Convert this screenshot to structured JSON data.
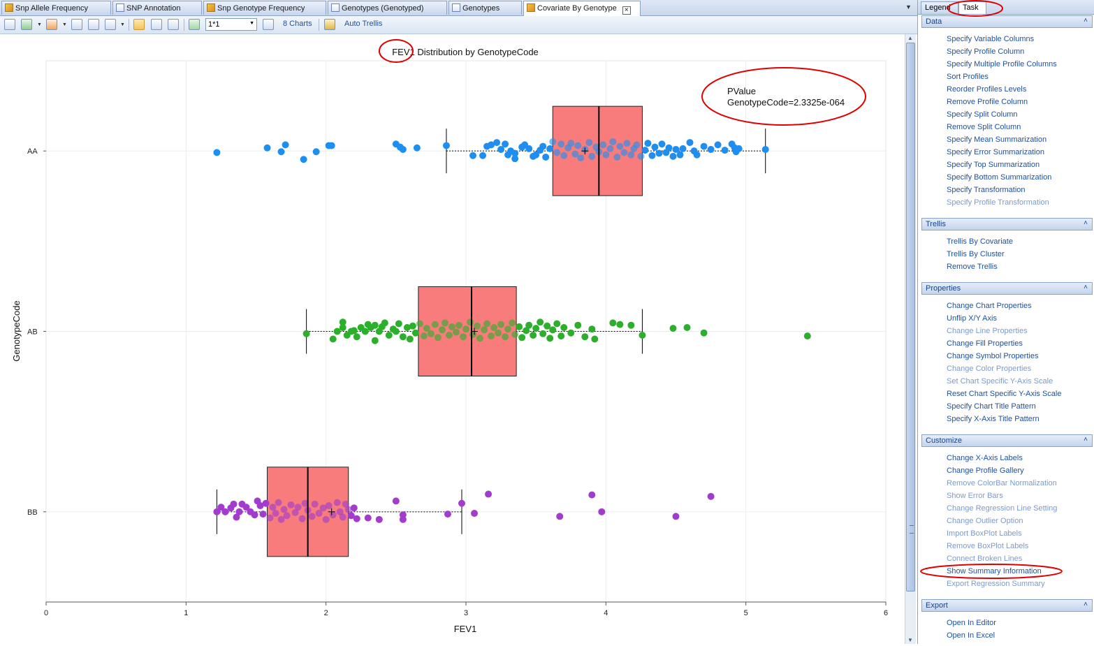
{
  "document_tabs": [
    {
      "label": "Snp Allele Frequency",
      "icon": "chart-pencil-icon",
      "active": false
    },
    {
      "label": "SNP Annotation",
      "icon": "grid-icon",
      "active": false
    },
    {
      "label": "Snp Genotype Frequency",
      "icon": "chart-pencil-icon",
      "active": false
    },
    {
      "label": "Genotypes (Genotyped)",
      "icon": "grid-icon",
      "active": false
    },
    {
      "label": "Genotypes",
      "icon": "grid-icon",
      "active": false
    },
    {
      "label": "Covariate By Genotype",
      "icon": "chart-pencil-icon",
      "active": true
    }
  ],
  "toolbar": {
    "layout_value": "1*1",
    "charts_label": "8 Charts",
    "auto_trellis_label": "Auto Trellis"
  },
  "right_panel": {
    "tabs": [
      {
        "label": "Legend",
        "active": false
      },
      {
        "label": "Task",
        "active": true
      }
    ],
    "sections": [
      {
        "title": "Data",
        "items": [
          {
            "label": "Specify Variable Columns",
            "enabled": true
          },
          {
            "label": "Specify Profile Column",
            "enabled": true
          },
          {
            "label": "Specify Multiple Profile Columns",
            "enabled": true
          },
          {
            "label": "Sort Profiles",
            "enabled": true
          },
          {
            "label": "Reorder Profiles Levels",
            "enabled": true
          },
          {
            "label": "Remove Profile Column",
            "enabled": true
          },
          {
            "label": "Specify Split Column",
            "enabled": true
          },
          {
            "label": "Remove Split Column",
            "enabled": true
          },
          {
            "label": "Specify Mean Summarization",
            "enabled": true
          },
          {
            "label": "Specify Error Summarization",
            "enabled": true
          },
          {
            "label": "Specify Top Summarization",
            "enabled": true
          },
          {
            "label": "Specify Bottom Summarization",
            "enabled": true
          },
          {
            "label": "Specify Transformation",
            "enabled": true
          },
          {
            "label": "Specify Profile Transformation",
            "enabled": false
          }
        ]
      },
      {
        "title": "Trellis",
        "items": [
          {
            "label": "Trellis By Covariate",
            "enabled": true
          },
          {
            "label": "Trellis By Cluster",
            "enabled": true
          },
          {
            "label": "Remove Trellis",
            "enabled": true
          }
        ]
      },
      {
        "title": "Properties",
        "items": [
          {
            "label": "Change Chart Properties",
            "enabled": true
          },
          {
            "label": "Unflip X/Y Axis",
            "enabled": true
          },
          {
            "label": "Change Line Properties",
            "enabled": false
          },
          {
            "label": "Change Fill Properties",
            "enabled": true
          },
          {
            "label": "Change Symbol Properties",
            "enabled": true
          },
          {
            "label": "Change Color Properties",
            "enabled": false
          },
          {
            "label": "Set Chart Specific Y-Axis Scale",
            "enabled": false
          },
          {
            "label": "Reset Chart Specific Y-Axis Scale",
            "enabled": true
          },
          {
            "label": "Specify Chart Title Pattern",
            "enabled": true
          },
          {
            "label": "Specify X-Axis Title Pattern",
            "enabled": true
          }
        ]
      },
      {
        "title": "Customize",
        "items": [
          {
            "label": "Change X-Axis Labels",
            "enabled": true
          },
          {
            "label": "Change Profile Gallery",
            "enabled": true
          },
          {
            "label": "Remove ColorBar Normalization",
            "enabled": false
          },
          {
            "label": "Show Error Bars",
            "enabled": false
          },
          {
            "label": "Change Regression Line Setting",
            "enabled": false
          },
          {
            "label": "Change Outlier Option",
            "enabled": false
          },
          {
            "label": "Import BoxPlot Labels",
            "enabled": false
          },
          {
            "label": "Remove BoxPlot Labels",
            "enabled": false
          },
          {
            "label": "Connect Broken Lines",
            "enabled": false
          },
          {
            "label": "Show Summary Information",
            "enabled": true
          },
          {
            "label": "Export Regression Summary",
            "enabled": false
          }
        ]
      },
      {
        "title": "Export",
        "items": [
          {
            "label": "Open In Editor",
            "enabled": true
          },
          {
            "label": "Open In Excel",
            "enabled": true
          }
        ]
      }
    ]
  },
  "chart_data": {
    "type": "boxplot",
    "orientation": "horizontal",
    "title": "FEV1 Distribution by GenotypeCode",
    "xlabel": "FEV1",
    "ylabel": "GenotypeCode",
    "xlim": [
      0,
      6
    ],
    "xticks": [
      "0",
      "1",
      "2",
      "3",
      "4",
      "5",
      "6"
    ],
    "grid": true,
    "annotation": {
      "lines": [
        "PValue",
        "GenotypeCode=2.3325e-064"
      ],
      "placement": "top-right"
    },
    "box_color": "#f97c7c",
    "categories": [
      "AA",
      "AB",
      "BB"
    ],
    "groups": [
      {
        "name": "AA",
        "color": "#1e8ff0",
        "whisker_low": 2.86,
        "q1": 3.62,
        "median": 3.95,
        "mean": 3.85,
        "q3": 4.26,
        "whisker_high": 5.14,
        "points": [
          [
            1.22,
            -0.02
          ],
          [
            1.58,
            0.04
          ],
          [
            1.68,
            -0.01
          ],
          [
            1.71,
            0.08
          ],
          [
            1.84,
            -0.11
          ],
          [
            1.93,
            -0.01
          ],
          [
            2.02,
            0.07
          ],
          [
            2.04,
            0.07
          ],
          [
            2.5,
            0.09
          ],
          [
            2.53,
            0.05
          ],
          [
            2.55,
            0.02
          ],
          [
            2.65,
            0.04
          ],
          [
            2.86,
            0.07
          ],
          [
            3.05,
            -0.06
          ],
          [
            3.12,
            -0.06
          ],
          [
            3.15,
            0.06
          ],
          [
            3.18,
            0.08
          ],
          [
            3.22,
            0.11
          ],
          [
            3.25,
            0.02
          ],
          [
            3.28,
            0.09
          ],
          [
            3.3,
            -0.05
          ],
          [
            3.32,
            0.0
          ],
          [
            3.35,
            -0.03
          ],
          [
            3.35,
            -0.1
          ],
          [
            3.4,
            0.05
          ],
          [
            3.42,
            0.08
          ],
          [
            3.45,
            0.03
          ],
          [
            3.48,
            -0.07
          ],
          [
            3.5,
            -0.05
          ],
          [
            3.53,
            0.01
          ],
          [
            3.55,
            0.06
          ],
          [
            3.57,
            -0.08
          ],
          [
            3.6,
            0.03
          ],
          [
            3.62,
            0.12
          ],
          [
            3.65,
            -0.02
          ],
          [
            3.68,
            0.09
          ],
          [
            3.7,
            -0.06
          ],
          [
            3.73,
            0.04
          ],
          [
            3.75,
            0.1
          ],
          [
            3.78,
            -0.04
          ],
          [
            3.8,
            0.07
          ],
          [
            3.82,
            -0.09
          ],
          [
            3.85,
            0.02
          ],
          [
            3.88,
            0.11
          ],
          [
            3.9,
            -0.07
          ],
          [
            3.93,
            0.05
          ],
          [
            3.95,
            -0.01
          ],
          [
            3.98,
            0.08
          ],
          [
            4.0,
            -0.05
          ],
          [
            4.03,
            0.03
          ],
          [
            4.05,
            0.12
          ],
          [
            4.08,
            -0.08
          ],
          [
            4.1,
            0.06
          ],
          [
            4.13,
            -0.02
          ],
          [
            4.15,
            0.1
          ],
          [
            4.18,
            -0.05
          ],
          [
            4.2,
            0.03
          ],
          [
            4.22,
            0.08
          ],
          [
            4.25,
            -0.07
          ],
          [
            4.28,
            0.01
          ],
          [
            4.3,
            0.1
          ],
          [
            4.33,
            -0.06
          ],
          [
            4.35,
            0.05
          ],
          [
            4.38,
            -0.03
          ],
          [
            4.4,
            0.09
          ],
          [
            4.43,
            -0.02
          ],
          [
            4.45,
            0.04
          ],
          [
            4.48,
            -0.07
          ],
          [
            4.5,
            0.02
          ],
          [
            4.53,
            -0.05
          ],
          [
            4.55,
            0.03
          ],
          [
            4.6,
            0.11
          ],
          [
            4.63,
            0.0
          ],
          [
            4.65,
            -0.05
          ],
          [
            4.7,
            0.06
          ],
          [
            4.75,
            0.02
          ],
          [
            4.8,
            0.08
          ],
          [
            4.85,
            0.01
          ],
          [
            4.9,
            0.09
          ],
          [
            4.92,
            0.04
          ],
          [
            4.95,
            0.03
          ],
          [
            4.93,
            -0.01
          ],
          [
            5.14,
            0.02
          ]
        ]
      },
      {
        "name": "AB",
        "color": "#2cb02c",
        "whisker_low": 1.86,
        "q1": 2.66,
        "median": 3.04,
        "mean": 3.06,
        "q3": 3.36,
        "whisker_high": 4.26,
        "points": [
          [
            1.86,
            -0.03
          ],
          [
            2.05,
            -0.1
          ],
          [
            2.08,
            0.0
          ],
          [
            2.12,
            0.12
          ],
          [
            2.12,
            0.05
          ],
          [
            2.15,
            -0.05
          ],
          [
            2.18,
            0.0
          ],
          [
            2.2,
            0.01
          ],
          [
            2.22,
            -0.07
          ],
          [
            2.25,
            0.05
          ],
          [
            2.28,
            0.0
          ],
          [
            2.3,
            0.09
          ],
          [
            2.32,
            0.05
          ],
          [
            2.35,
            0.08
          ],
          [
            2.35,
            -0.12
          ],
          [
            2.38,
            0.0
          ],
          [
            2.4,
            0.06
          ],
          [
            2.42,
            0.11
          ],
          [
            2.45,
            -0.05
          ],
          [
            2.48,
            0.03
          ],
          [
            2.5,
            0.0
          ],
          [
            2.52,
            0.1
          ],
          [
            2.55,
            -0.07
          ],
          [
            2.58,
            0.05
          ],
          [
            2.6,
            -0.1
          ],
          [
            2.62,
            0.07
          ],
          [
            2.64,
            -0.02
          ],
          [
            2.67,
            0.1
          ],
          [
            2.7,
            -0.06
          ],
          [
            2.72,
            0.04
          ],
          [
            2.75,
            -0.03
          ],
          [
            2.78,
            0.09
          ],
          [
            2.8,
            -0.08
          ],
          [
            2.83,
            0.02
          ],
          [
            2.85,
            0.11
          ],
          [
            2.88,
            -0.05
          ],
          [
            2.9,
            0.06
          ],
          [
            2.93,
            -0.01
          ],
          [
            2.95,
            0.08
          ],
          [
            2.98,
            -0.07
          ],
          [
            3.0,
            0.03
          ],
          [
            3.03,
            0.12
          ],
          [
            3.05,
            -0.04
          ],
          [
            3.08,
            0.07
          ],
          [
            3.1,
            -0.09
          ],
          [
            3.13,
            0.02
          ],
          [
            3.15,
            0.1
          ],
          [
            3.18,
            -0.06
          ],
          [
            3.2,
            0.05
          ],
          [
            3.23,
            -0.02
          ],
          [
            3.25,
            0.09
          ],
          [
            3.28,
            -0.07
          ],
          [
            3.3,
            0.03
          ],
          [
            3.33,
            0.11
          ],
          [
            3.35,
            -0.04
          ],
          [
            3.38,
            0.06
          ],
          [
            3.4,
            -0.08
          ],
          [
            3.43,
            0.01
          ],
          [
            3.45,
            0.08
          ],
          [
            3.48,
            -0.05
          ],
          [
            3.5,
            0.04
          ],
          [
            3.53,
            0.12
          ],
          [
            3.55,
            -0.03
          ],
          [
            3.58,
            0.07
          ],
          [
            3.6,
            -0.09
          ],
          [
            3.62,
            0.02
          ],
          [
            3.65,
            0.1
          ],
          [
            3.68,
            -0.06
          ],
          [
            3.7,
            0.05
          ],
          [
            3.75,
            -0.02
          ],
          [
            3.8,
            0.08
          ],
          [
            3.85,
            -0.07
          ],
          [
            3.9,
            0.03
          ],
          [
            3.92,
            -0.1
          ],
          [
            4.05,
            0.11
          ],
          [
            4.1,
            0.09
          ],
          [
            4.18,
            0.08
          ],
          [
            4.26,
            -0.05
          ],
          [
            4.48,
            0.04
          ],
          [
            4.58,
            0.05
          ],
          [
            4.7,
            -0.02
          ],
          [
            5.44,
            -0.06
          ]
        ]
      },
      {
        "name": "BB",
        "color": "#a23ccc",
        "whisker_low": 1.22,
        "q1": 1.58,
        "median": 1.87,
        "mean": 2.04,
        "q3": 2.16,
        "whisker_high": 2.97,
        "points": [
          [
            1.22,
            0.0
          ],
          [
            1.25,
            0.06
          ],
          [
            1.28,
            0.0
          ],
          [
            1.32,
            0.05
          ],
          [
            1.34,
            0.1
          ],
          [
            1.36,
            -0.07
          ],
          [
            1.38,
            0.0
          ],
          [
            1.4,
            0.1
          ],
          [
            1.43,
            0.06
          ],
          [
            1.46,
            0.0
          ],
          [
            1.49,
            -0.04
          ],
          [
            1.51,
            0.14
          ],
          [
            1.53,
            0.08
          ],
          [
            1.55,
            -0.03
          ],
          [
            1.57,
            0.11
          ],
          [
            1.6,
            -0.08
          ],
          [
            1.62,
            0.06
          ],
          [
            1.64,
            -0.02
          ],
          [
            1.66,
            0.12
          ],
          [
            1.68,
            -0.1
          ],
          [
            1.7,
            0.03
          ],
          [
            1.72,
            -0.05
          ],
          [
            1.75,
            0.09
          ],
          [
            1.78,
            -0.01
          ],
          [
            1.8,
            0.06
          ],
          [
            1.83,
            -0.09
          ],
          [
            1.85,
            0.11
          ],
          [
            1.87,
            0.02
          ],
          [
            1.9,
            -0.06
          ],
          [
            1.92,
            0.1
          ],
          [
            1.95,
            -0.02
          ],
          [
            1.98,
            0.05
          ],
          [
            2.0,
            -0.1
          ],
          [
            2.02,
            0.08
          ],
          [
            2.05,
            -0.04
          ],
          [
            2.08,
            0.12
          ],
          [
            2.1,
            0.0
          ],
          [
            2.12,
            -0.07
          ],
          [
            2.14,
            0.1
          ],
          [
            2.16,
            0.03
          ],
          [
            2.18,
            -0.05
          ],
          [
            2.2,
            0.05
          ],
          [
            2.22,
            -0.09
          ],
          [
            2.3,
            -0.08
          ],
          [
            2.38,
            -0.1
          ],
          [
            2.5,
            0.14
          ],
          [
            2.55,
            -0.04
          ],
          [
            2.55,
            -0.1
          ],
          [
            2.87,
            -0.03
          ],
          [
            2.97,
            0.11
          ],
          [
            3.06,
            -0.02
          ],
          [
            3.16,
            0.23
          ],
          [
            3.67,
            -0.06
          ],
          [
            3.9,
            0.22
          ],
          [
            3.97,
            0.0
          ],
          [
            4.5,
            -0.06
          ],
          [
            4.75,
            0.2
          ]
        ]
      }
    ]
  }
}
